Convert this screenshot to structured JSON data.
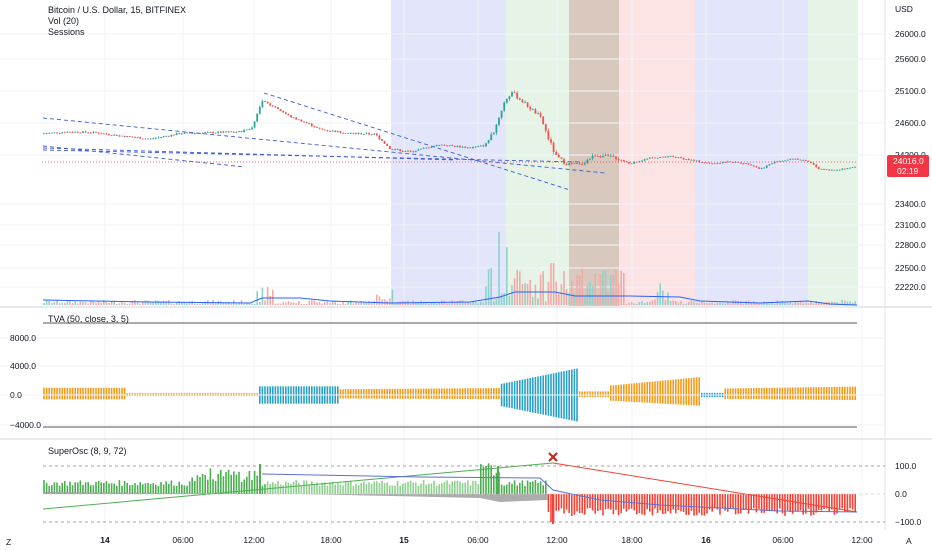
{
  "header": {
    "title": "Bitcoin / U.S. Dollar, 15, BITFINEX",
    "indicator1": "Vol (20)",
    "indicator2": "Sessions"
  },
  "price_scale": {
    "currency": "USD",
    "ticks": [
      "26000.0",
      "25600.0",
      "25100.0",
      "24600.0",
      "24200.0",
      "23400.0",
      "23100.0",
      "22800.0",
      "22500.0",
      "22220.0"
    ],
    "tick_values": [
      26000,
      25600,
      25100,
      24600,
      24200,
      23400,
      23100,
      22800,
      22500,
      22220
    ],
    "last_price": "24016.0",
    "countdown": "02:19"
  },
  "tva_panel": {
    "title": "TVA (50, close, 3, 5)",
    "ticks": [
      "8000.0",
      "4000.0",
      "0.0",
      "−4000.0"
    ],
    "tick_values": [
      8000,
      4000,
      0,
      -4000
    ]
  },
  "superosc_panel": {
    "title": "SuperOsc (8, 9, 72)",
    "ticks": [
      "100.0",
      "0.0",
      "−100.0"
    ],
    "tick_values": [
      100,
      0,
      -100
    ]
  },
  "time_axis": {
    "labels": [
      "14",
      "06:00",
      "12:00",
      "18:00",
      "15",
      "06:00",
      "12:00",
      "18:00",
      "16",
      "06:00",
      "12:00"
    ]
  },
  "corner": {
    "left": "Z",
    "right": "A"
  },
  "colors": {
    "up": "#26a69a",
    "down": "#ef5350",
    "tva_orange": "#f59b1a",
    "tva_blue": "#2aa1c8",
    "session_blue": "#e3e6fb",
    "session_green": "#e5f4e7",
    "session_red": "#fce4e4",
    "session_brown": "#d9c8bd",
    "osc_green": "#4caf50",
    "osc_red": "#f44336",
    "osc_grey": "#9e9e9e",
    "osc_blue": "#5b6fd6",
    "last_price_bg": "#f23645"
  },
  "chart_data": {
    "type": "candlestick",
    "symbol": "Bitcoin / U.S. Dollar, 15, BITFINEX",
    "ylim": [
      22100,
      26200
    ],
    "key_prices": {
      "start": 24480,
      "peak_day1": 25050,
      "low_day2": 24180,
      "peak_day2": 25140,
      "low_day2_end": 24000,
      "end": 24016
    }
  }
}
